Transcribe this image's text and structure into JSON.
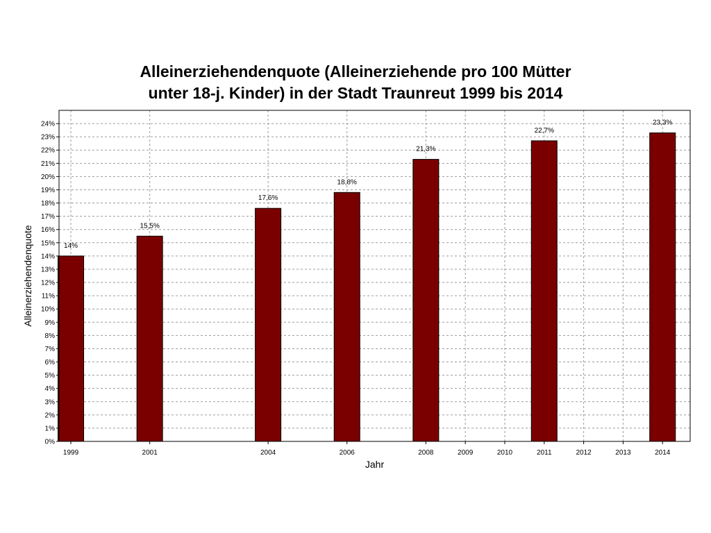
{
  "chart_data": {
    "type": "bar",
    "title_line1": "Alleinerziehendenquote (Alleinerziehende pro 100 Mütter",
    "title_line2": "unter 18-j. Kinder) in der Stadt Traunreut 1999 bis 2014",
    "xlabel": "Jahr",
    "ylabel": "Alleinerziehendenquote",
    "x_ticks": [
      "1999",
      "2001",
      "2004",
      "2006",
      "2008",
      "2009",
      "2010",
      "2011",
      "2012",
      "2013",
      "2014"
    ],
    "x_tick_values": [
      1999,
      2001,
      2004,
      2006,
      2008,
      2009,
      2010,
      2011,
      2012,
      2013,
      2014
    ],
    "x_range": [
      1998.7,
      2014.7
    ],
    "ylim": [
      0,
      25
    ],
    "y_ticks": [
      0,
      1,
      2,
      3,
      4,
      5,
      6,
      7,
      8,
      9,
      10,
      11,
      12,
      13,
      14,
      15,
      16,
      17,
      18,
      19,
      20,
      21,
      22,
      23,
      24
    ],
    "y_tick_suffix": "%",
    "grid": true,
    "bar_color": "#7a0000",
    "bars": [
      {
        "year": 1999,
        "value": 14.0,
        "label": "14%"
      },
      {
        "year": 2001,
        "value": 15.5,
        "label": "15,5%"
      },
      {
        "year": 2004,
        "value": 17.6,
        "label": "17,6%"
      },
      {
        "year": 2006,
        "value": 18.8,
        "label": "18,8%"
      },
      {
        "year": 2008,
        "value": 21.3,
        "label": "21,3%"
      },
      {
        "year": 2011,
        "value": 22.7,
        "label": "22,7%"
      },
      {
        "year": 2014,
        "value": 23.3,
        "label": "23,3%"
      }
    ]
  }
}
